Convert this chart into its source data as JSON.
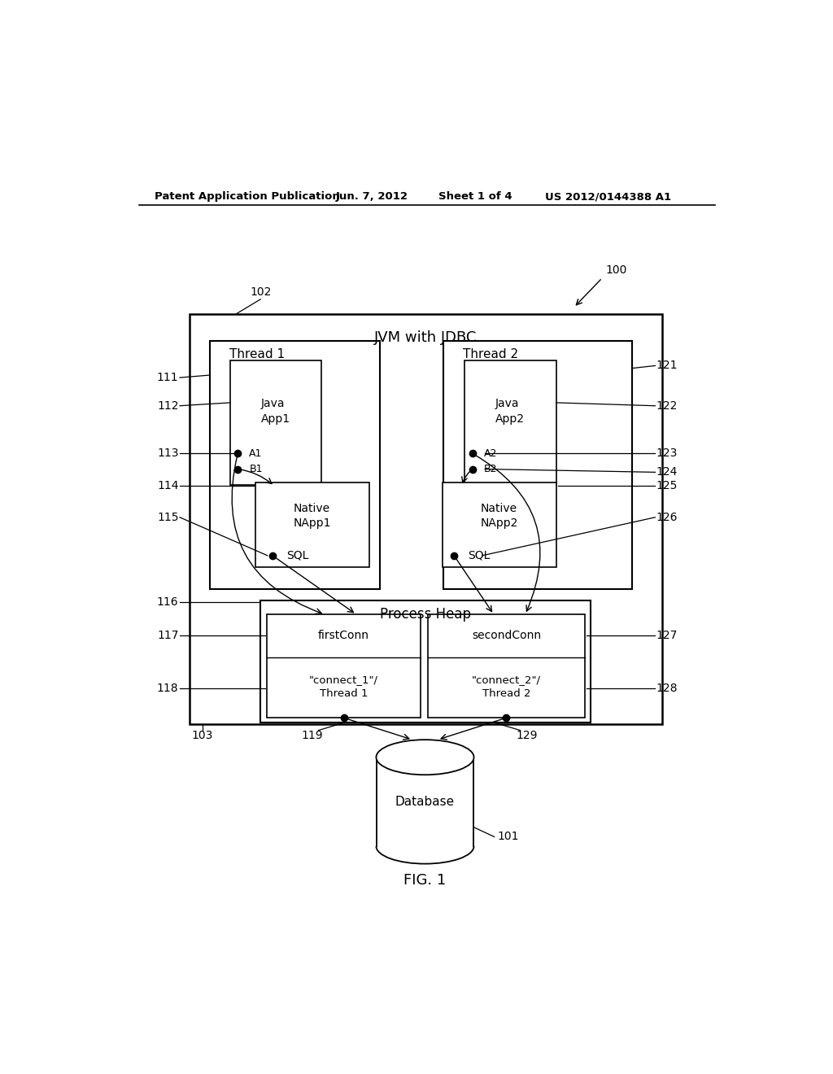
{
  "bg_color": "#ffffff",
  "header_text": "Patent Application Publication",
  "header_date": "Jun. 7, 2012",
  "header_sheet": "Sheet 1 of 4",
  "header_patent": "US 2012/0144388 A1",
  "fig_label": "FIG. 1",
  "outer_box_label": "JVM with JDBC",
  "thread1_label": "Thread 1",
  "thread2_label": "Thread 2",
  "javaapp1_text": "Java\nApp1",
  "javaapp2_text": "Java\nApp2",
  "native1_text": "Native\nNApp1",
  "native2_text": "Native\nNApp2",
  "processheap_label": "Process Heap",
  "firstconn_label": "firstConn",
  "secondconn_label": "secondConn",
  "connect1_text": "\"connect_1\"/\nThread 1",
  "connect2_text": "\"connect_2\"/\nThread 2",
  "database_label": "Database",
  "ref_100": "100",
  "ref_101": "101",
  "ref_102": "102",
  "ref_103": "103",
  "ref_111": "111",
  "ref_112": "112",
  "ref_113": "113",
  "ref_114": "114",
  "ref_115": "115",
  "ref_116": "116",
  "ref_117": "117",
  "ref_118": "118",
  "ref_119": "119",
  "ref_121": "121",
  "ref_122": "122",
  "ref_123": "123",
  "ref_124": "124",
  "ref_125": "125",
  "ref_126": "126",
  "ref_127": "127",
  "ref_128": "128",
  "ref_129": "129"
}
